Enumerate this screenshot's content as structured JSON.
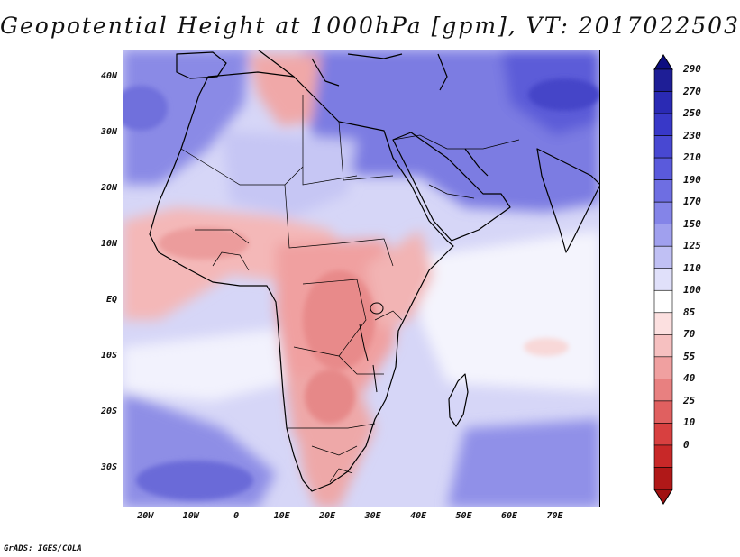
{
  "title": "Geopotential Height at 1000hPa [gpm], VT: 2017022503",
  "credit": "GrADS: IGES/COLA",
  "map": {
    "variable": "Geopotential Height",
    "level": "1000hPa",
    "units": "gpm",
    "valid_time": "2017022503",
    "lon_range": [
      -25,
      80
    ],
    "lat_range": [
      -37,
      45
    ],
    "x_ticks": [
      {
        "lon": -20,
        "label": "20W"
      },
      {
        "lon": -10,
        "label": "10W"
      },
      {
        "lon": 0,
        "label": "0"
      },
      {
        "lon": 10,
        "label": "10E"
      },
      {
        "lon": 20,
        "label": "20E"
      },
      {
        "lon": 30,
        "label": "30E"
      },
      {
        "lon": 40,
        "label": "40E"
      },
      {
        "lon": 50,
        "label": "50E"
      },
      {
        "lon": 60,
        "label": "60E"
      },
      {
        "lon": 70,
        "label": "70E"
      }
    ],
    "y_ticks": [
      {
        "lat": 40,
        "label": "40N"
      },
      {
        "lat": 30,
        "label": "30N"
      },
      {
        "lat": 20,
        "label": "20N"
      },
      {
        "lat": 10,
        "label": "10N"
      },
      {
        "lat": 0,
        "label": "EQ"
      },
      {
        "lat": -10,
        "label": "10S"
      },
      {
        "lat": -20,
        "label": "20S"
      },
      {
        "lat": -30,
        "label": "30S"
      }
    ]
  },
  "colorbar": {
    "levels": [
      "290",
      "270",
      "250",
      "230",
      "210",
      "190",
      "170",
      "150",
      "125",
      "110",
      "100",
      "85",
      "70",
      "55",
      "40",
      "25",
      "10",
      "0"
    ],
    "colors": [
      "#1e1e96",
      "#2a2ab4",
      "#3838c8",
      "#4848d2",
      "#5a5adc",
      "#6e6ee2",
      "#8484e8",
      "#a0a0ee",
      "#c0c0f4",
      "#e0e0fa",
      "#ffffff",
      "#fce0e0",
      "#f6c0c0",
      "#f0a0a0",
      "#e88080",
      "#e06060",
      "#d84040",
      "#c82828",
      "#b01818"
    ],
    "top_color": "#0d0d80",
    "bottom_color": "#a01010"
  }
}
